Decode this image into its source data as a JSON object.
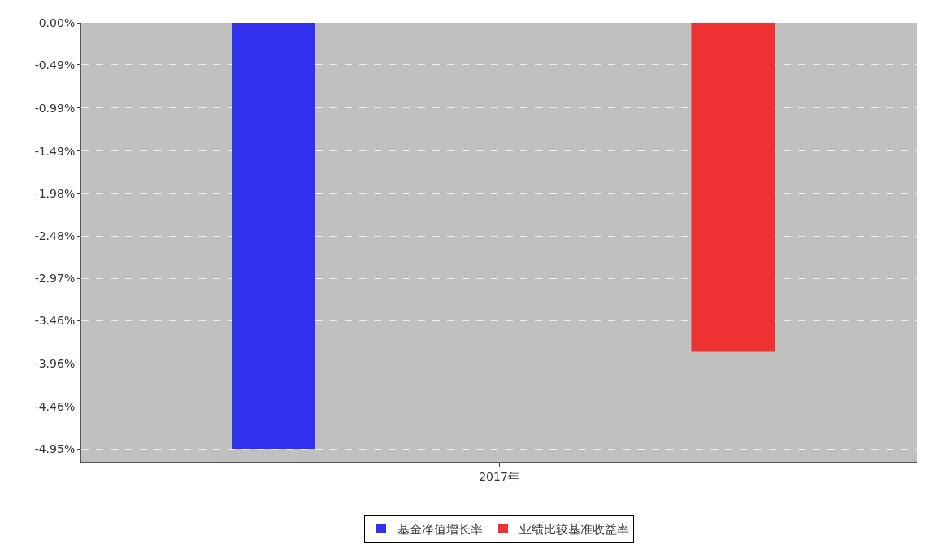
{
  "chart_data": {
    "type": "bar",
    "categories": [
      "2017年"
    ],
    "series": [
      {
        "name": "基金净值增长率",
        "color": "#3232ee",
        "values": [
          -4.95
        ]
      },
      {
        "name": "业绩比较基准收益率",
        "color": "#ee3232",
        "values": [
          -3.82
        ]
      }
    ],
    "ylim": [
      -5.1,
      0
    ],
    "yticks": [
      {
        "value": 0,
        "label": "0.00%"
      },
      {
        "value": -0.49,
        "label": "-0.49%"
      },
      {
        "value": -0.99,
        "label": "-0.99%"
      },
      {
        "value": -1.49,
        "label": "-1.49%"
      },
      {
        "value": -1.98,
        "label": "-1.98%"
      },
      {
        "value": -2.48,
        "label": "-2.48%"
      },
      {
        "value": -2.97,
        "label": "-2.97%"
      },
      {
        "value": -3.46,
        "label": "-3.46%"
      },
      {
        "value": -3.96,
        "label": "-3.96%"
      },
      {
        "value": -4.46,
        "label": "-4.46%"
      },
      {
        "value": -4.95,
        "label": "-4.95%"
      }
    ],
    "grid": "y",
    "legend": "bottom"
  }
}
